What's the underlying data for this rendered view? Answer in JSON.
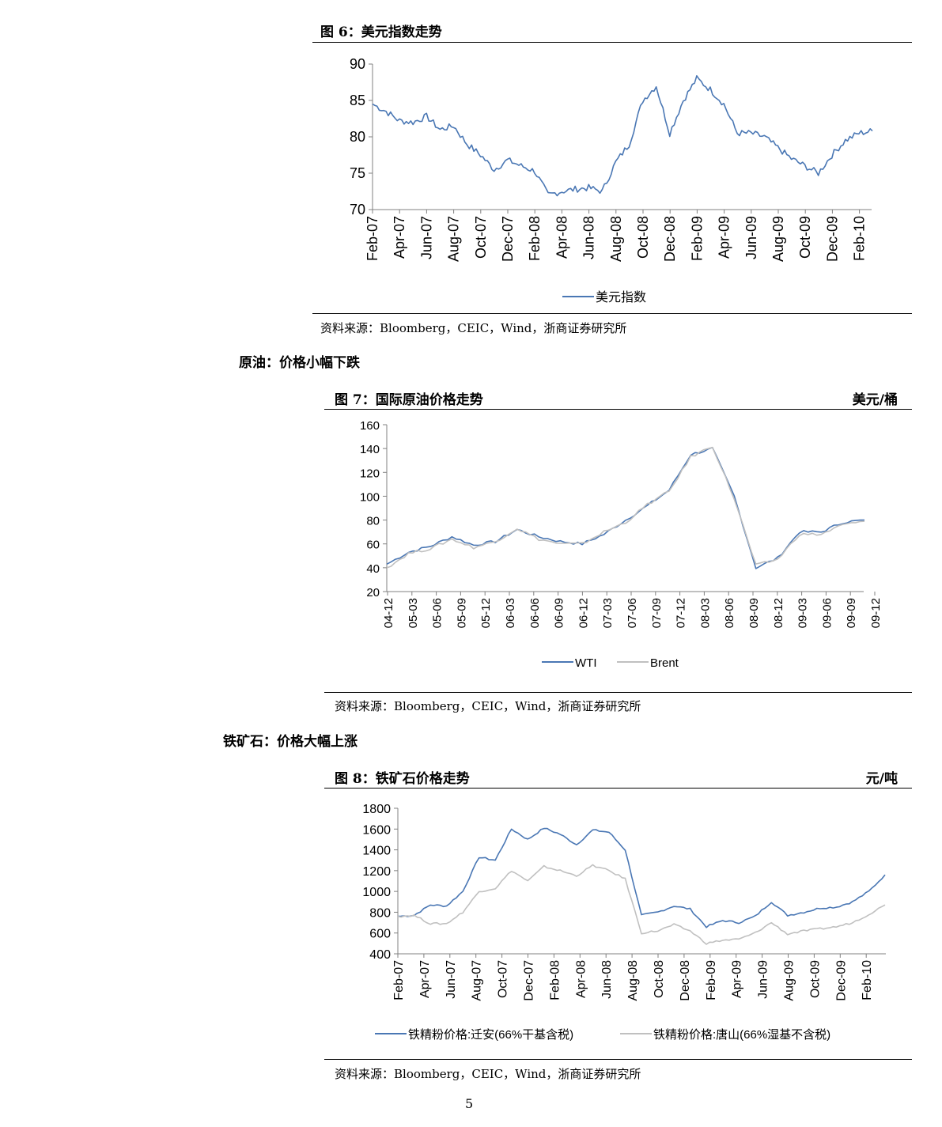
{
  "page_number": "5",
  "section1": {
    "title": "原油：价格小幅下跌"
  },
  "section2": {
    "title": "铁矿石：价格大幅上涨"
  },
  "chart1": {
    "label": "图 6：",
    "title": "美元指数走势",
    "source": "资料来源：Bloomberg，CEIC，Wind，浙商证券研究所",
    "legend": [
      "美元指数"
    ]
  },
  "chart2": {
    "label": "图 7：",
    "title": "国际原油价格走势",
    "unit": "美元/桶",
    "source": "资料来源：Bloomberg，CEIC，Wind，浙商证券研究所",
    "legend": [
      "WTI",
      "Brent"
    ]
  },
  "chart3": {
    "label": "图 8：",
    "title": "铁矿石价格走势",
    "unit": "元/吨",
    "source": "资料来源：Bloomberg，CEIC，Wind，浙商证券研究所",
    "legend": [
      "铁精粉价格:迁安(66%干基含税)",
      "铁精粉价格:唐山(66%湿基不含税)"
    ]
  },
  "colors": {
    "blue": "#4a77b4",
    "gray": "#c0c0c0",
    "axis": "#808080"
  },
  "chart_data": [
    {
      "type": "line",
      "title": "美元指数走势",
      "x_ticks": [
        "Feb-07",
        "Apr-07",
        "Jun-07",
        "Aug-07",
        "Oct-07",
        "Dec-07",
        "Feb-08",
        "Apr-08",
        "Jun-08",
        "Aug-08",
        "Oct-08",
        "Dec-08",
        "Feb-09",
        "Apr-09",
        "Jun-09",
        "Aug-09",
        "Oct-09",
        "Dec-09",
        "Feb-10"
      ],
      "y_ticks": [
        70,
        75,
        80,
        85,
        90
      ],
      "ylim": [
        70,
        90
      ],
      "x": [
        "2007-02",
        "2007-03",
        "2007-04",
        "2007-05",
        "2007-06",
        "2007-07",
        "2007-08",
        "2007-09",
        "2007-10",
        "2007-11",
        "2007-12",
        "2008-01",
        "2008-02",
        "2008-03",
        "2008-04",
        "2008-05",
        "2008-06",
        "2008-07",
        "2008-08",
        "2008-09",
        "2008-10",
        "2008-11",
        "2008-12",
        "2009-01",
        "2009-02",
        "2009-03",
        "2009-04",
        "2009-05",
        "2009-06",
        "2009-07",
        "2009-08",
        "2009-09",
        "2009-10",
        "2009-11",
        "2009-12",
        "2010-01",
        "2010-02",
        "2010-03"
      ],
      "series": [
        {
          "name": "美元指数",
          "values": [
            84.5,
            83.5,
            82.2,
            82.0,
            82.8,
            81.0,
            81.5,
            79.0,
            77.5,
            75.5,
            76.8,
            76.0,
            75.3,
            72.0,
            72.5,
            72.8,
            73.0,
            72.5,
            76.5,
            79.0,
            85.0,
            87.0,
            80.5,
            85.0,
            88.0,
            86.5,
            84.5,
            80.5,
            80.5,
            80.0,
            78.5,
            77.0,
            76.0,
            75.0,
            77.5,
            79.5,
            80.5,
            80.8
          ]
        }
      ]
    },
    {
      "type": "line",
      "title": "国际原油价格走势",
      "x_ticks": [
        "04-12",
        "05-03",
        "05-06",
        "05-09",
        "05-12",
        "06-03",
        "06-06",
        "06-09",
        "06-12",
        "07-03",
        "07-06",
        "07-09",
        "07-12",
        "08-03",
        "08-06",
        "08-09",
        "08-12",
        "09-03",
        "09-06",
        "09-09",
        "09-12"
      ],
      "y_ticks": [
        20,
        40,
        60,
        80,
        100,
        120,
        140,
        160
      ],
      "ylim": [
        20,
        160
      ],
      "x": [
        "04-12",
        "05-03",
        "05-06",
        "05-09",
        "05-12",
        "06-03",
        "06-06",
        "06-09",
        "06-12",
        "07-03",
        "07-06",
        "07-09",
        "07-12",
        "08-03",
        "08-06",
        "08-07",
        "08-09",
        "08-12",
        "09-03",
        "09-06",
        "09-09",
        "09-12",
        "10-02"
      ],
      "series": [
        {
          "name": "WTI",
          "values": [
            43,
            53,
            58,
            66,
            59,
            62,
            72,
            66,
            62,
            60,
            68,
            80,
            92,
            105,
            135,
            140,
            100,
            40,
            48,
            70,
            70,
            78,
            80
          ]
        },
        {
          "name": "Brent",
          "values": [
            40,
            52,
            56,
            64,
            57,
            62,
            73,
            64,
            60,
            60,
            70,
            78,
            93,
            104,
            133,
            142,
            98,
            42,
            47,
            68,
            68,
            76,
            79
          ]
        }
      ]
    },
    {
      "type": "line",
      "title": "铁矿石价格走势",
      "x_ticks": [
        "Feb-07",
        "Apr-07",
        "Jun-07",
        "Aug-07",
        "Oct-07",
        "Dec-07",
        "Feb-08",
        "Apr-08",
        "Jun-08",
        "Aug-08",
        "Oct-08",
        "Dec-08",
        "Feb-09",
        "Apr-09",
        "Jun-09",
        "Aug-09",
        "Oct-09",
        "Dec-09",
        "Feb-10"
      ],
      "y_ticks": [
        400,
        600,
        800,
        1000,
        1200,
        1400,
        1600,
        1800
      ],
      "ylim": [
        400,
        1800
      ],
      "x": [
        "2007-02",
        "2007-04",
        "2007-06",
        "2007-07",
        "2007-08",
        "2007-09",
        "2007-10",
        "2007-12",
        "2008-01",
        "2008-02",
        "2008-03",
        "2008-04",
        "2008-06",
        "2008-08",
        "2008-09",
        "2008-10",
        "2008-11",
        "2008-12",
        "2009-02",
        "2009-04",
        "2009-05",
        "2009-06",
        "2009-07",
        "2009-08",
        "2009-09",
        "2009-10",
        "2009-11",
        "2009-12",
        "2010-01",
        "2010-02",
        "2010-03"
      ],
      "series": [
        {
          "name": "铁精粉价格:迁安(66%干基含税)",
          "values": [
            760,
            770,
            870,
            860,
            1000,
            1330,
            1300,
            1600,
            1500,
            1610,
            1550,
            1450,
            1590,
            1570,
            1400,
            770,
            800,
            860,
            830,
            660,
            720,
            700,
            760,
            900,
            770,
            800,
            840,
            850,
            900,
            1000,
            1160
          ]
        },
        {
          "name": "铁精粉价格:唐山(66%湿基不含税)",
          "values": [
            760,
            770,
            690,
            690,
            800,
            1000,
            1030,
            1200,
            1100,
            1240,
            1200,
            1150,
            1250,
            1200,
            1120,
            600,
            620,
            680,
            620,
            500,
            530,
            540,
            600,
            700,
            590,
            620,
            640,
            660,
            700,
            780,
            870
          ]
        }
      ]
    }
  ]
}
